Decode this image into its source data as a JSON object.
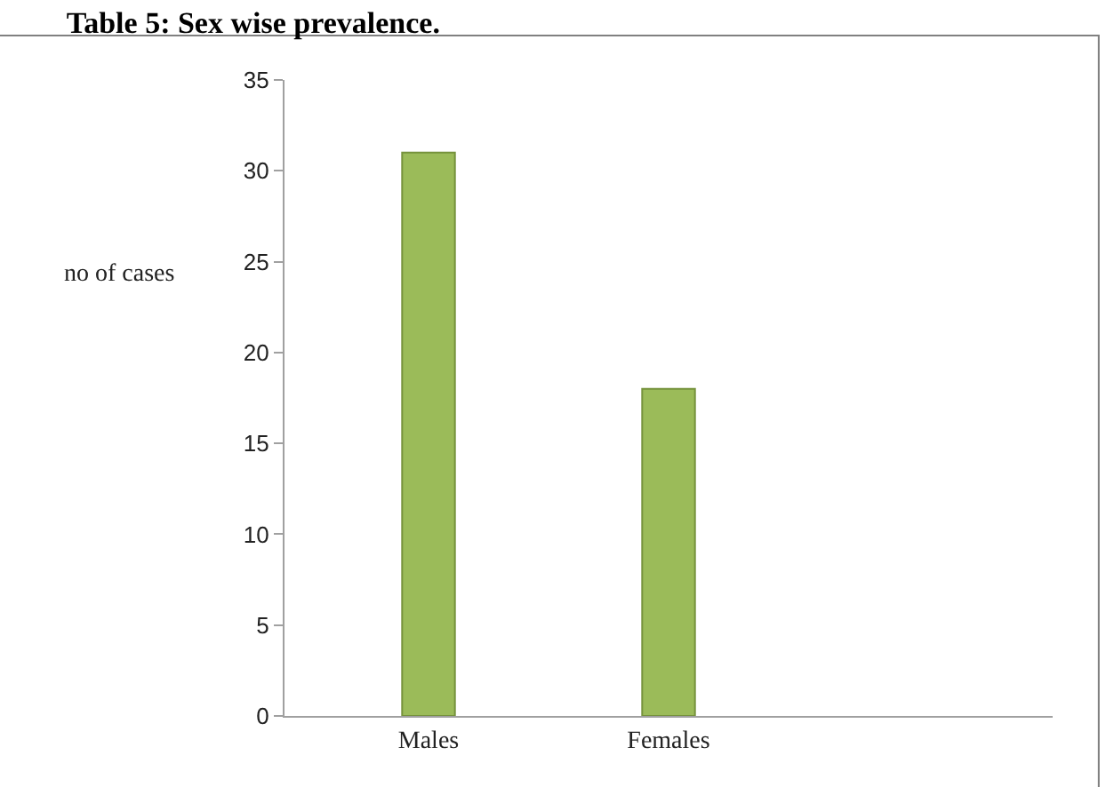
{
  "chart_data": {
    "type": "bar",
    "title": "Table 5: Sex wise prevalence.",
    "ylabel": "no of cases",
    "categories": [
      "Males",
      "Females"
    ],
    "values": [
      31,
      18
    ],
    "color": "#9bbb59",
    "ylim": [
      0,
      35
    ],
    "yticks": [
      0,
      5,
      10,
      15,
      20,
      25,
      30,
      35
    ]
  }
}
